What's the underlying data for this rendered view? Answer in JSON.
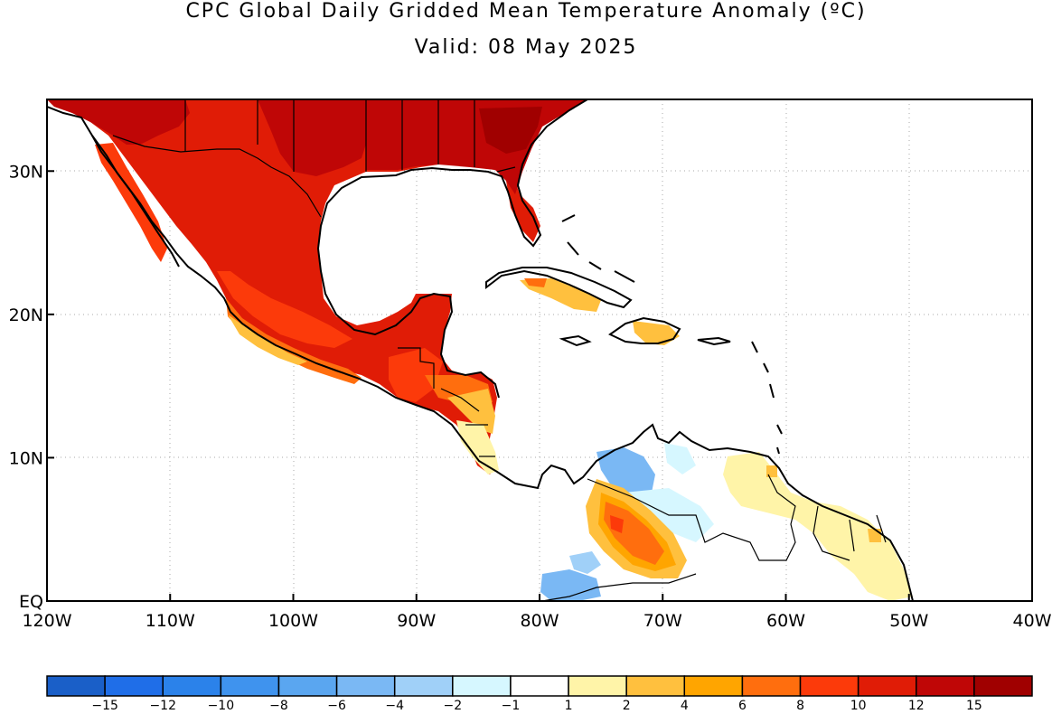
{
  "title": "CPC Global Daily Gridded Mean Temperature Anomaly (ºC)",
  "subtitle": "Valid: 08 May 2025",
  "map": {
    "lon_range": [
      -120,
      -40
    ],
    "lat_range": [
      0,
      35
    ],
    "lon_ticks": [
      {
        "value": -120,
        "label": "120W"
      },
      {
        "value": -110,
        "label": "110W"
      },
      {
        "value": -100,
        "label": "100W"
      },
      {
        "value": -90,
        "label": "90W"
      },
      {
        "value": -80,
        "label": "80W"
      },
      {
        "value": -70,
        "label": "70W"
      },
      {
        "value": -60,
        "label": "60W"
      },
      {
        "value": -50,
        "label": "50W"
      },
      {
        "value": -40,
        "label": "40W"
      }
    ],
    "lat_ticks": [
      {
        "value": 0,
        "label": "EQ"
      },
      {
        "value": 10,
        "label": "10N"
      },
      {
        "value": 20,
        "label": "20N"
      },
      {
        "value": 30,
        "label": "30N"
      }
    ],
    "gridlines": true
  },
  "colorbar": {
    "colors": [
      "#1a5fc8",
      "#1f6ee8",
      "#2b82ea",
      "#3f93ee",
      "#5aa6f0",
      "#7ab8f4",
      "#a0d0f8",
      "#d6f7ff",
      "#ffffff",
      "#fff4a8",
      "#ffc03e",
      "#ffa500",
      "#ff6e0e",
      "#fc3a0a",
      "#e01c06",
      "#bf0606",
      "#a00000"
    ],
    "labels": [
      "-15",
      "-12",
      "-10",
      "-8",
      "-6",
      "-4",
      "-2",
      "-1",
      "1",
      "2",
      "4",
      "6",
      "8",
      "10",
      "12",
      "15"
    ]
  }
}
